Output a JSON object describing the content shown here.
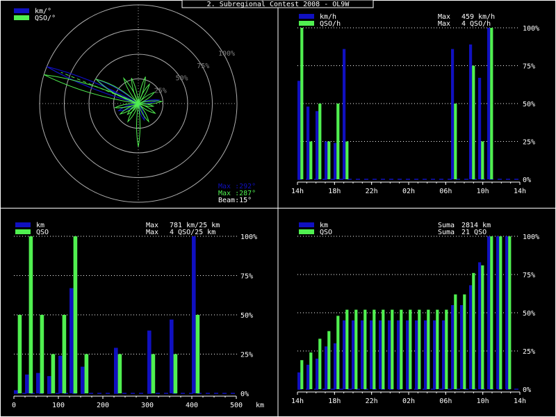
{
  "title": "2. Subregional Contest 2008 - OL9W",
  "colors": {
    "blue": "#1010c0",
    "green": "#50f050",
    "white": "#ffffff",
    "grid": "#ffffff",
    "circle": "#b0b0b0"
  },
  "chart_data": [
    {
      "type": "polar",
      "legend": [
        "km/°",
        "QSO/°"
      ],
      "ring_labels": [
        "25%",
        "50%",
        "75%",
        "100%"
      ],
      "readouts": {
        "max_km": "Max :292°",
        "max_qso": "Max :287°",
        "beam": "Beam:15°"
      },
      "km_peak_deg": 292,
      "qso_peak_deg": 287,
      "beam_deg": 15
    },
    {
      "type": "bar",
      "legend": [
        "km/h",
        "QSO/h"
      ],
      "stats": [
        {
          "label": "Max",
          "value": "459 km/h"
        },
        {
          "label": "Max",
          "value": "4 QSO/h"
        }
      ],
      "x_ticks": [
        "14h",
        "18h",
        "22h",
        "02h",
        "06h",
        "10h",
        "14h"
      ],
      "y_ticks": [
        "0%",
        "25%",
        "50%",
        "75%",
        "100%"
      ],
      "ylim": [
        0,
        100
      ],
      "series": [
        {
          "name": "km/h",
          "values": [
            65,
            48,
            45,
            25,
            24,
            86,
            0,
            0,
            0,
            0,
            0,
            0,
            0,
            0,
            0,
            0,
            0,
            86,
            0,
            89,
            67,
            100,
            0,
            0
          ]
        },
        {
          "name": "QSO/h",
          "values": [
            100,
            25,
            50,
            25,
            50,
            25,
            0,
            0,
            0,
            0,
            0,
            0,
            0,
            0,
            0,
            0,
            0,
            50,
            0,
            75,
            25,
            100,
            0,
            0
          ]
        }
      ]
    },
    {
      "type": "bar",
      "legend": [
        "km",
        "QSO"
      ],
      "stats": [
        {
          "label": "Max",
          "value": "781 km/25 km"
        },
        {
          "label": "Max",
          "value": "4 QSO/25 km"
        }
      ],
      "x_ticks": [
        "0",
        "100",
        "200",
        "300",
        "400",
        "500"
      ],
      "x_unit": "km",
      "y_ticks": [
        "0%",
        "25%",
        "50%",
        "75%",
        "100%"
      ],
      "xlim": [
        0,
        500
      ],
      "ylim": [
        0,
        100
      ],
      "series": [
        {
          "name": "km",
          "values": [
            2,
            12,
            13,
            11,
            24,
            67,
            17,
            0,
            0,
            29,
            0,
            0,
            40,
            0,
            47,
            0,
            100,
            0,
            0,
            0
          ]
        },
        {
          "name": "QSO",
          "values": [
            50,
            100,
            50,
            25,
            50,
            100,
            25,
            0,
            0,
            25,
            0,
            0,
            25,
            0,
            25,
            0,
            50,
            0,
            0,
            0
          ]
        }
      ]
    },
    {
      "type": "bar",
      "legend": [
        "km",
        "QSO"
      ],
      "stats": [
        {
          "label": "Suma",
          "value": "2814 km"
        },
        {
          "label": "Suma",
          "value": "21 QSO"
        }
      ],
      "x_ticks": [
        "14h",
        "18h",
        "22h",
        "02h",
        "06h",
        "10h",
        "14h"
      ],
      "y_ticks": [
        "0%",
        "25%",
        "50%",
        "75%",
        "100%"
      ],
      "ylim": [
        0,
        100
      ],
      "series": [
        {
          "name": "km",
          "values": [
            11,
            16,
            20,
            28,
            30,
            45,
            45,
            45,
            45,
            45,
            45,
            45,
            45,
            45,
            45,
            45,
            45,
            55,
            55,
            68,
            83,
            100,
            100,
            100
          ]
        },
        {
          "name": "QSO",
          "values": [
            19,
            24,
            33,
            38,
            48,
            52,
            52,
            52,
            52,
            52,
            52,
            52,
            52,
            52,
            52,
            52,
            52,
            62,
            62,
            76,
            81,
            100,
            100,
            100
          ]
        }
      ]
    }
  ]
}
